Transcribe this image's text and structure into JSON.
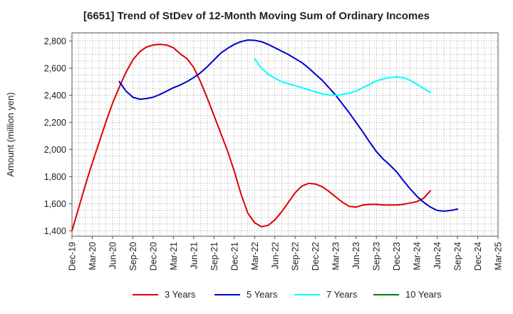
{
  "title": "[6651]  Trend of StDev of 12-Month Moving Sum of Ordinary Incomes",
  "chart_data": {
    "type": "line",
    "title": "[6651]  Trend of StDev of 12-Month Moving Sum of Ordinary Incomes",
    "xlabel": "",
    "ylabel": "Amount (million yen)",
    "x_ticks": [
      "Dec-19",
      "Mar-20",
      "Jun-20",
      "Sep-20",
      "Dec-20",
      "Mar-21",
      "Jun-21",
      "Sep-21",
      "Dec-21",
      "Mar-22",
      "Jun-22",
      "Sep-22",
      "Dec-22",
      "Mar-23",
      "Jun-23",
      "Sep-23",
      "Dec-23",
      "Mar-24",
      "Jun-24",
      "Sep-24",
      "Dec-24",
      "Mar-25"
    ],
    "y_ticks": [
      "1,400",
      "1,600",
      "1,800",
      "2,000",
      "2,200",
      "2,400",
      "2,600",
      "2,800"
    ],
    "ylim": [
      1360,
      2860
    ],
    "grid": true,
    "legend_position": "bottom",
    "series": [
      {
        "name": "3 Years",
        "color": "#dd0000",
        "start_index": 0,
        "values": [
          1400,
          1570,
          1740,
          1900,
          2050,
          2200,
          2340,
          2460,
          2570,
          2660,
          2720,
          2755,
          2770,
          2775,
          2770,
          2750,
          2705,
          2670,
          2605,
          2500,
          2380,
          2250,
          2120,
          1990,
          1840,
          1670,
          1530,
          1460,
          1430,
          1440,
          1480,
          1540,
          1610,
          1680,
          1730,
          1750,
          1745,
          1725,
          1690,
          1650,
          1610,
          1580,
          1575,
          1590,
          1595,
          1595,
          1590,
          1590,
          1590,
          1595,
          1605,
          1615,
          1640,
          1695
        ]
      },
      {
        "name": "5 Years",
        "color": "#0000cc",
        "start_index": 7,
        "values": [
          2500,
          2430,
          2385,
          2370,
          2375,
          2385,
          2405,
          2430,
          2455,
          2475,
          2500,
          2530,
          2565,
          2610,
          2660,
          2710,
          2745,
          2775,
          2795,
          2807,
          2805,
          2795,
          2775,
          2750,
          2725,
          2700,
          2670,
          2640,
          2600,
          2555,
          2510,
          2455,
          2400,
          2335,
          2270,
          2200,
          2130,
          2055,
          1985,
          1930,
          1885,
          1835,
          1770,
          1710,
          1655,
          1610,
          1575,
          1550,
          1545,
          1550,
          1560
        ]
      },
      {
        "name": "7 Years",
        "color": "#00ffff",
        "start_index": 27,
        "values": [
          2670,
          2600,
          2555,
          2525,
          2500,
          2485,
          2470,
          2455,
          2440,
          2425,
          2410,
          2400,
          2400,
          2405,
          2415,
          2430,
          2455,
          2480,
          2505,
          2520,
          2530,
          2535,
          2530,
          2510,
          2480,
          2450,
          2420
        ]
      },
      {
        "name": "10 Years",
        "color": "#008000",
        "start_index": 0,
        "values": []
      }
    ]
  }
}
